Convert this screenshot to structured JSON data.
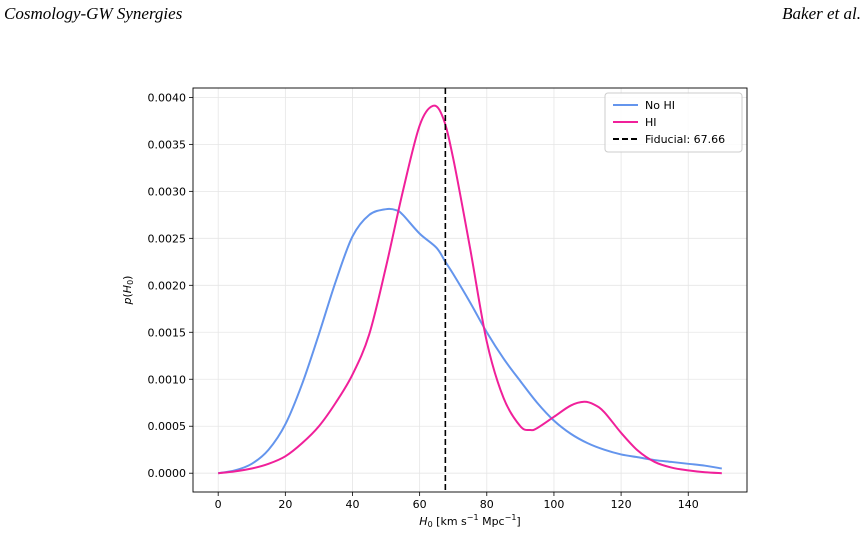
{
  "header": {
    "left": "Cosmology-GW Synergies",
    "right": "Baker et al."
  },
  "chart_data": {
    "type": "line",
    "title": "",
    "xlabel": "H_0 [km s^-1 Mpc^-1]",
    "ylabel": "p(H_0)",
    "xlim": [
      -7.5,
      157.5
    ],
    "ylim": [
      -0.0002,
      0.0041
    ],
    "xticks": [
      0,
      20,
      40,
      60,
      80,
      100,
      120,
      140
    ],
    "yticks": [
      0.0,
      0.0005,
      0.001,
      0.0015,
      0.002,
      0.0025,
      0.003,
      0.0035,
      0.004
    ],
    "ytick_labels": [
      "0.0000",
      "0.0005",
      "0.0010",
      "0.0015",
      "0.0020",
      "0.0025",
      "0.0030",
      "0.0035",
      "0.0040"
    ],
    "grid": true,
    "legend_position": "top-right",
    "series": [
      {
        "name": "No HI",
        "color": "#6495ED",
        "x": [
          0,
          5,
          10,
          15,
          20,
          25,
          30,
          35,
          40,
          45,
          50,
          53,
          55,
          60,
          65,
          67.66,
          70,
          75,
          80,
          85,
          90,
          95,
          100,
          105,
          110,
          115,
          120,
          125,
          130,
          135,
          140,
          145,
          150
        ],
        "y": [
          0.0,
          3e-05,
          0.0001,
          0.00025,
          0.00052,
          0.00095,
          0.00148,
          0.00204,
          0.00252,
          0.00275,
          0.00281,
          0.0028,
          0.00275,
          0.00255,
          0.0024,
          0.00225,
          0.00212,
          0.00182,
          0.0015,
          0.00122,
          0.00098,
          0.00075,
          0.00056,
          0.00042,
          0.00032,
          0.00025,
          0.0002,
          0.00017,
          0.00014,
          0.00012,
          0.0001,
          8e-05,
          5e-05
        ]
      },
      {
        "name": "HI",
        "color": "#F0209A",
        "x": [
          0,
          5,
          10,
          15,
          20,
          25,
          30,
          35,
          40,
          45,
          50,
          55,
          60,
          64,
          67,
          70,
          75,
          80,
          85,
          90,
          93,
          95,
          100,
          105,
          109,
          112,
          115,
          120,
          125,
          130,
          135,
          140,
          145,
          150
        ],
        "y": [
          0.0,
          2e-05,
          5e-05,
          0.0001,
          0.00018,
          0.00032,
          0.0005,
          0.00075,
          0.00105,
          0.00148,
          0.0022,
          0.003,
          0.0037,
          0.00391,
          0.00378,
          0.00335,
          0.0024,
          0.0014,
          0.0008,
          0.0005,
          0.00046,
          0.00048,
          0.0006,
          0.00072,
          0.00076,
          0.00073,
          0.00065,
          0.00043,
          0.00024,
          0.00012,
          6e-05,
          3e-05,
          1e-05,
          0.0
        ]
      }
    ],
    "vline": {
      "name": "Fiducial: 67.66",
      "x": 67.66,
      "color": "#000000",
      "style": "dashed"
    },
    "legend": [
      "No HI",
      "HI",
      "Fiducial: 67.66"
    ]
  }
}
